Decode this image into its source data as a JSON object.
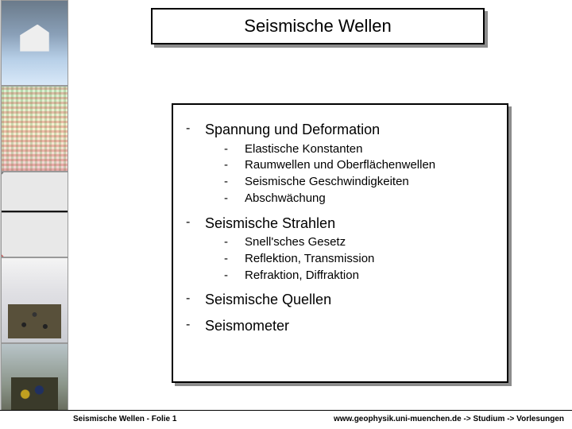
{
  "slide": {
    "title": "Seismische Wellen",
    "sections": [
      {
        "heading": "Spannung und Deformation",
        "items": [
          "Elastische Konstanten",
          "Raumwellen und Oberflächenwellen",
          "Seismische Geschwindigkeiten",
          "Abschwächung"
        ]
      },
      {
        "heading": "Seismische Strahlen",
        "items": [
          "Snell'sches Gesetz",
          "Reflektion, Transmission",
          "Refraktion, Diffraktion"
        ]
      },
      {
        "heading": "Seismische Quellen",
        "items": []
      },
      {
        "heading": "Seismometer",
        "items": []
      }
    ],
    "bullet": "-"
  },
  "footer": {
    "left": "Seismische Wellen  -  Folie 1",
    "right": "www.geophysik.uni-muenchen.de -> Studium -> Vorlesungen"
  },
  "colors": {
    "background": "#ffffff",
    "box_border": "#000000",
    "box_shadow": "rgba(0,0,0,0.45)"
  }
}
